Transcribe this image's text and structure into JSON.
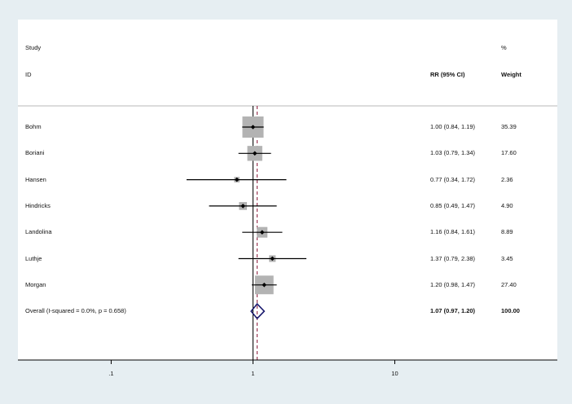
{
  "headers": {
    "study": "Study",
    "id": "ID",
    "rr": "RR (95% CI)",
    "pct": "%",
    "weight": "Weight"
  },
  "chart_data": {
    "type": "forest",
    "x_scale": "log",
    "xlim": [
      0.022,
      140
    ],
    "null_value": 1,
    "overall_effect": 1.07,
    "x_ticks": [
      {
        "value": 0.1,
        "label": ".1"
      },
      {
        "value": 1,
        "label": "1"
      },
      {
        "value": 10,
        "label": "10"
      }
    ],
    "studies": [
      {
        "name": "Bohm",
        "rr": 1.0,
        "lo": 0.84,
        "hi": 1.19,
        "ci_text": "1.00 (0.84, 1.19)",
        "weight": 35.39,
        "weight_text": "35.39"
      },
      {
        "name": "Boriani",
        "rr": 1.03,
        "lo": 0.79,
        "hi": 1.34,
        "ci_text": "1.03 (0.79, 1.34)",
        "weight": 17.6,
        "weight_text": "17.60"
      },
      {
        "name": "Hansen",
        "rr": 0.77,
        "lo": 0.34,
        "hi": 1.72,
        "ci_text": "0.77 (0.34, 1.72)",
        "weight": 2.36,
        "weight_text": "2.36"
      },
      {
        "name": "Hindricks",
        "rr": 0.85,
        "lo": 0.49,
        "hi": 1.47,
        "ci_text": "0.85 (0.49, 1.47)",
        "weight": 4.9,
        "weight_text": "4.90"
      },
      {
        "name": "Landolina",
        "rr": 1.16,
        "lo": 0.84,
        "hi": 1.61,
        "ci_text": "1.16 (0.84, 1.61)",
        "weight": 8.89,
        "weight_text": "8.89"
      },
      {
        "name": "Luthje",
        "rr": 1.37,
        "lo": 0.79,
        "hi": 2.38,
        "ci_text": "1.37 (0.79, 2.38)",
        "weight": 3.45,
        "weight_text": "3.45"
      },
      {
        "name": "Morgan",
        "rr": 1.2,
        "lo": 0.98,
        "hi": 1.47,
        "ci_text": "1.20 (0.98, 1.47)",
        "weight": 27.4,
        "weight_text": "27.40"
      }
    ],
    "overall": {
      "label": "Overall  (I-squared = 0.0%, p = 0.658)",
      "rr": 1.07,
      "lo": 0.97,
      "hi": 1.2,
      "ci_text": "1.07 (0.97, 1.20)",
      "weight_text": "100.00"
    },
    "colors": {
      "square": "#b3b3b3",
      "line": "#000000",
      "overall_diamond": "#1a1a6e",
      "effect_line": "#8b1a3a",
      "separator": "#b8b8b8"
    }
  }
}
